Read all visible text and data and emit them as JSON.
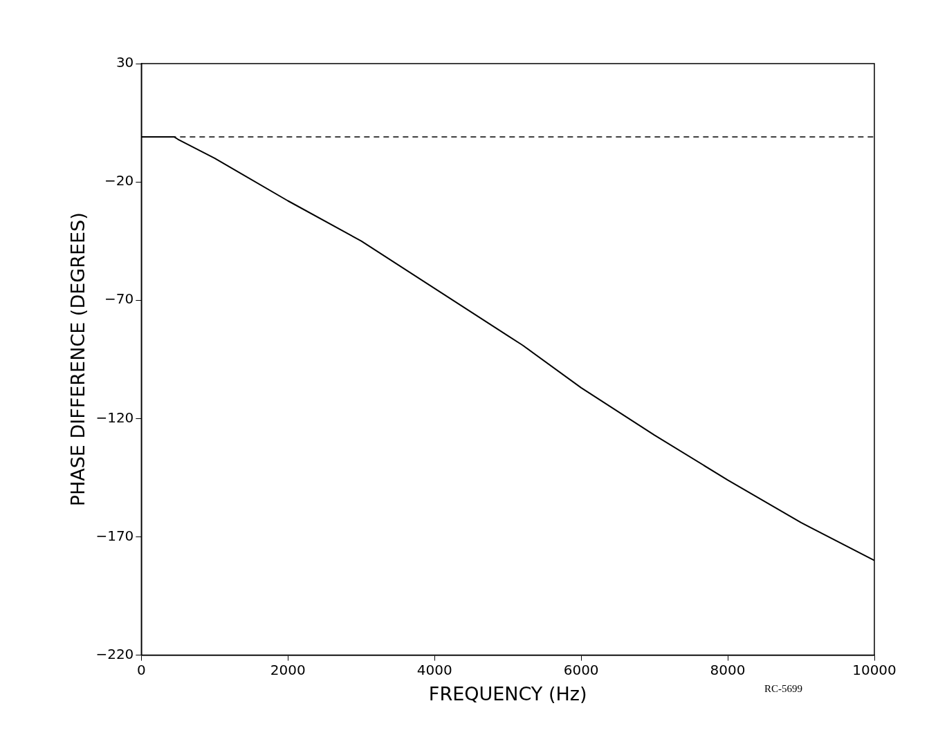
{
  "chart_data": {
    "type": "line",
    "xlabel": "FREQUENCY (Hz)",
    "ylabel": "PHASE DIFFERENCE (DEGREES)",
    "x": [
      0,
      450,
      500,
      1000,
      2000,
      3000,
      4000,
      5000,
      5200,
      6000,
      7000,
      8000,
      9000,
      10000
    ],
    "series": [
      {
        "color": "#000000",
        "values": [
          -1,
          -1,
          -2,
          -10,
          -28,
          -45,
          -65,
          -85,
          -89,
          -107,
          -127,
          -146,
          -164,
          -180
        ]
      }
    ],
    "xlim": [
      0,
      10000
    ],
    "xticks": [
      0,
      2000,
      4000,
      6000,
      8000,
      10000
    ],
    "ylim": [
      -220,
      30
    ],
    "yticks": [
      -220,
      -170,
      -120,
      -70,
      -20,
      30
    ],
    "ref_lines": [
      {
        "axis": "y",
        "value": -1,
        "line_style": "dashed",
        "color": "#000000"
      }
    ],
    "grid": false,
    "legend": false,
    "marker": "none",
    "line_style": "solid",
    "annotations": [
      "RC-5699"
    ]
  }
}
